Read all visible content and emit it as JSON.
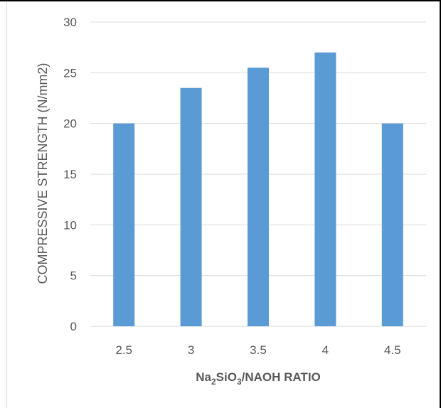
{
  "chart_data": {
    "type": "bar",
    "categories": [
      "2.5",
      "3",
      "3.5",
      "4",
      "4.5"
    ],
    "values": [
      20,
      23.5,
      25.5,
      27,
      20
    ],
    "ylabel": "COMPRESSIVE STRENGTH (N/mm2)",
    "xlabel": {
      "part1": "Na",
      "sub1": "2",
      "part2": "SiO",
      "sub2": "3",
      "part3": "/NAOH RATIO"
    },
    "ylim": [
      0,
      30
    ],
    "yticks": [
      "0",
      "5",
      "10",
      "15",
      "20",
      "25",
      "30"
    ],
    "grid": true,
    "bar_color": "#5b9bd5",
    "grid_color": "#d9d9d9"
  }
}
